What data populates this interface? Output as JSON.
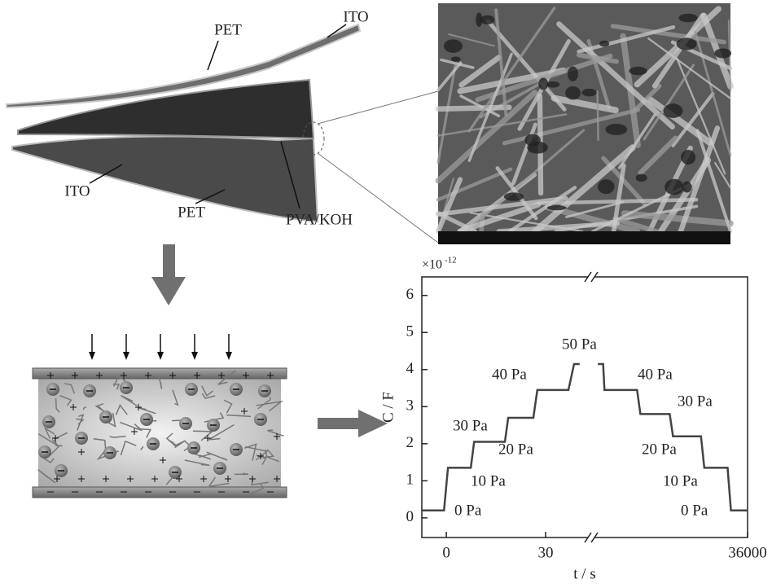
{
  "diagram": {
    "labels": [
      "PET",
      "ITO",
      "ITO",
      "PET",
      "PVA/KOH"
    ]
  },
  "chart_data": {
    "type": "line",
    "y_label": "C / F",
    "x_label": "t / s",
    "y_scale_label": {
      "base": "×10",
      "exponent": "-12"
    },
    "xlim": [
      -7.4,
      36000
    ],
    "x_break": [
      42.8,
      35954
    ],
    "xticks": [
      0,
      30,
      36000
    ],
    "ylim": [
      -0.53,
      6.5
    ],
    "yticks": [
      0,
      1,
      2,
      3,
      4,
      5,
      6
    ],
    "series": [
      {
        "color": "#444444",
        "x": [
          -7.4,
          -0.7,
          0.5,
          7.4,
          8.4,
          17.7,
          18.7,
          26.3,
          27.5,
          36.9,
          38.6,
          40.3,
          null,
          35955,
          35956.6,
          35957,
          35966.8,
          35967.8,
          35976.6,
          35977.6,
          35986,
          35987,
          35994,
          35995,
          36000
        ],
        "values": [
          0.2,
          0.2,
          1.35,
          1.35,
          2.05,
          2.05,
          2.7,
          2.7,
          3.45,
          3.45,
          4.15,
          4.15,
          null,
          4.15,
          4.15,
          3.45,
          3.45,
          2.8,
          2.8,
          2.2,
          2.2,
          1.35,
          1.35,
          0.2,
          0.2
        ]
      }
    ],
    "annotations": [
      "0 Pa",
      "10 Pa",
      "20 Pa",
      "30 Pa",
      "40 Pa",
      "50 Pa",
      "40 Pa",
      "30 Pa",
      "20 Pa",
      "10 Pa",
      "0 Pa"
    ]
  }
}
